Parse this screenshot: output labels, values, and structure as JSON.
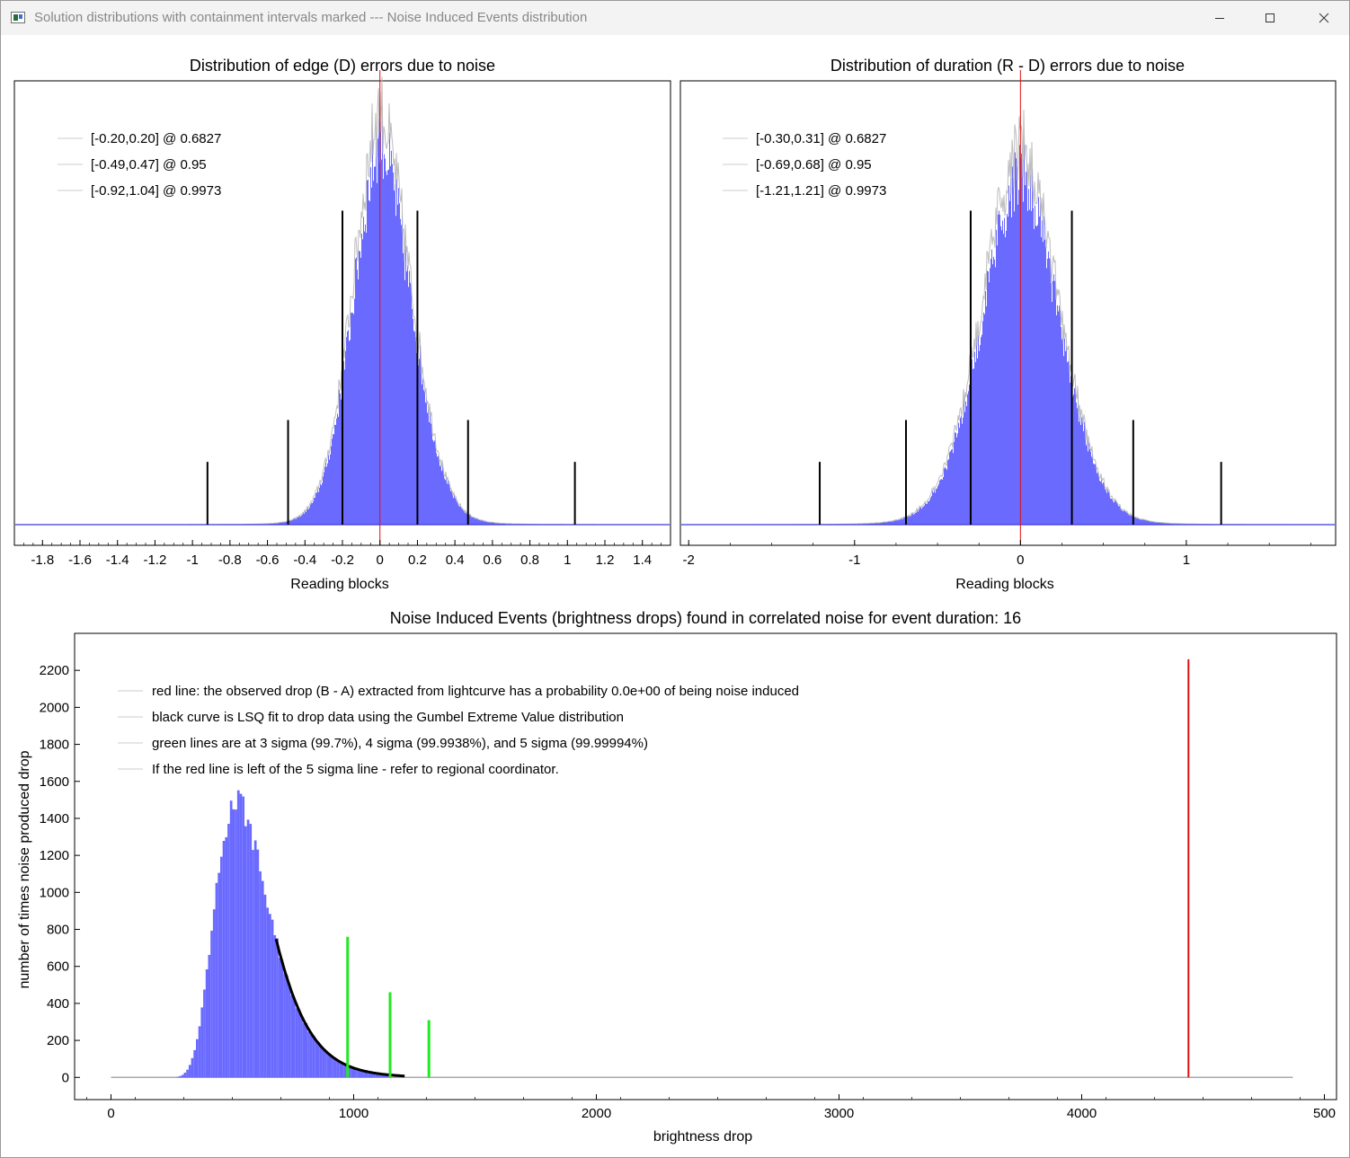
{
  "window": {
    "title": "Solution distributions with containment intervals marked --- Noise Induced Events distribution",
    "icon": "app-window-icon",
    "controls": [
      "minimize-icon",
      "maximize-icon",
      "close-icon"
    ]
  },
  "chart_data": [
    {
      "type": "bar",
      "title": "Distribution of edge (D) errors due to noise",
      "xlabel": "Reading blocks",
      "ylabel": "",
      "xlim": [
        -1.95,
        1.55
      ],
      "xticks": [
        "-1.8",
        "-1.6",
        "-1.4",
        "-1.2",
        "-1",
        "-0.8",
        "-0.6",
        "-0.4",
        "-0.2",
        "0",
        "0.2",
        "0.4",
        "0.6",
        "0.8",
        "1",
        "1.2",
        "1.4"
      ],
      "grid": false,
      "legend_placement": "top-left",
      "legend": [
        "[-0.20,0.20] @ 0.6827",
        "[-0.49,0.47] @ 0.95",
        "[-0.92,1.04] @ 0.9973"
      ],
      "intervals": [
        {
          "confidence": 0.6827,
          "low": -0.2,
          "high": 0.2
        },
        {
          "confidence": 0.95,
          "low": -0.49,
          "high": 0.47
        },
        {
          "confidence": 0.9973,
          "low": -0.92,
          "high": 1.04
        }
      ],
      "center_line": 0,
      "distribution": {
        "peak_x": 0,
        "peak_relative_height": 1.0,
        "sigma_left": 0.15,
        "sigma_right": 0.17
      },
      "colors": {
        "bars": "#6a6aff",
        "envelope": "#bdbdbd",
        "interval_lines": "#000000",
        "center_line": "#e01010",
        "baseline": "#3a3adf"
      }
    },
    {
      "type": "bar",
      "title": "Distribution of duration (R - D) errors due to noise",
      "xlabel": "Reading blocks",
      "ylabel": "",
      "xlim": [
        -2.05,
        1.9
      ],
      "xticks": [
        "-2",
        "-1",
        "0",
        "1"
      ],
      "grid": false,
      "legend_placement": "top-left",
      "legend": [
        "[-0.30,0.31] @ 0.6827",
        "[-0.69,0.68] @ 0.95",
        "[-1.21,1.21] @ 0.9973"
      ],
      "intervals": [
        {
          "confidence": 0.6827,
          "low": -0.3,
          "high": 0.31
        },
        {
          "confidence": 0.95,
          "low": -0.69,
          "high": 0.68
        },
        {
          "confidence": 0.9973,
          "low": -1.21,
          "high": 1.21
        }
      ],
      "center_line": 0,
      "distribution": {
        "peak_x": 0,
        "peak_relative_height": 0.92,
        "sigma_left": 0.24,
        "sigma_right": 0.24
      },
      "colors": {
        "bars": "#6a6aff",
        "envelope": "#bdbdbd",
        "interval_lines": "#000000",
        "center_line": "#e01010",
        "baseline": "#3a3adf"
      }
    },
    {
      "type": "bar",
      "title": "Noise Induced Events (brightness drops) found in correlated noise for event duration: 16",
      "xlabel": "brightness drop",
      "ylabel": "number of times noise produced drop",
      "xlim": [
        -150,
        5050
      ],
      "ylim": [
        -120,
        2400
      ],
      "xticks": [
        "0",
        "1000",
        "2000",
        "3000",
        "4000",
        "500"
      ],
      "yticks": [
        "0",
        "200",
        "400",
        "600",
        "800",
        "1000",
        "1200",
        "1400",
        "1600",
        "1800",
        "2000",
        "2200"
      ],
      "grid": false,
      "legend_placement": "top-left",
      "legend": [
        "red line: the observed drop (B - A) extracted from lightcurve has a probability 0.0e+00 of being noise induced",
        "black curve is LSQ fit to drop data using the Gumbel Extreme Value distribution",
        "green lines are at 3 sigma (99.7%), 4 sigma (99.9938%), and 5 sigma (99.99994%)",
        "If the red line is left of the 5 sigma line - refer to regional coordinator."
      ],
      "histogram": {
        "mode": 520,
        "peak_count": 1490,
        "beta": 110,
        "bin_width": 10,
        "range": [
          200,
          1150
        ]
      },
      "gumbel_fit": {
        "mode": 520,
        "beta": 110,
        "peak": 1490,
        "range": [
          680,
          1210
        ]
      },
      "sigma_lines": [
        {
          "label": "3 sigma",
          "x": 975,
          "height": 760
        },
        {
          "label": "4 sigma",
          "x": 1150,
          "height": 460
        },
        {
          "label": "5 sigma",
          "x": 1310,
          "height": 310
        }
      ],
      "observed_drop": {
        "x": 4440,
        "height": 2260
      },
      "baseline_range": [
        0,
        4870
      ],
      "colors": {
        "bars": "#6a6aff",
        "fit": "#000000",
        "sigma_lines": "#22e822",
        "observed": "#e01010",
        "baseline": "#aaaaaa"
      }
    }
  ]
}
